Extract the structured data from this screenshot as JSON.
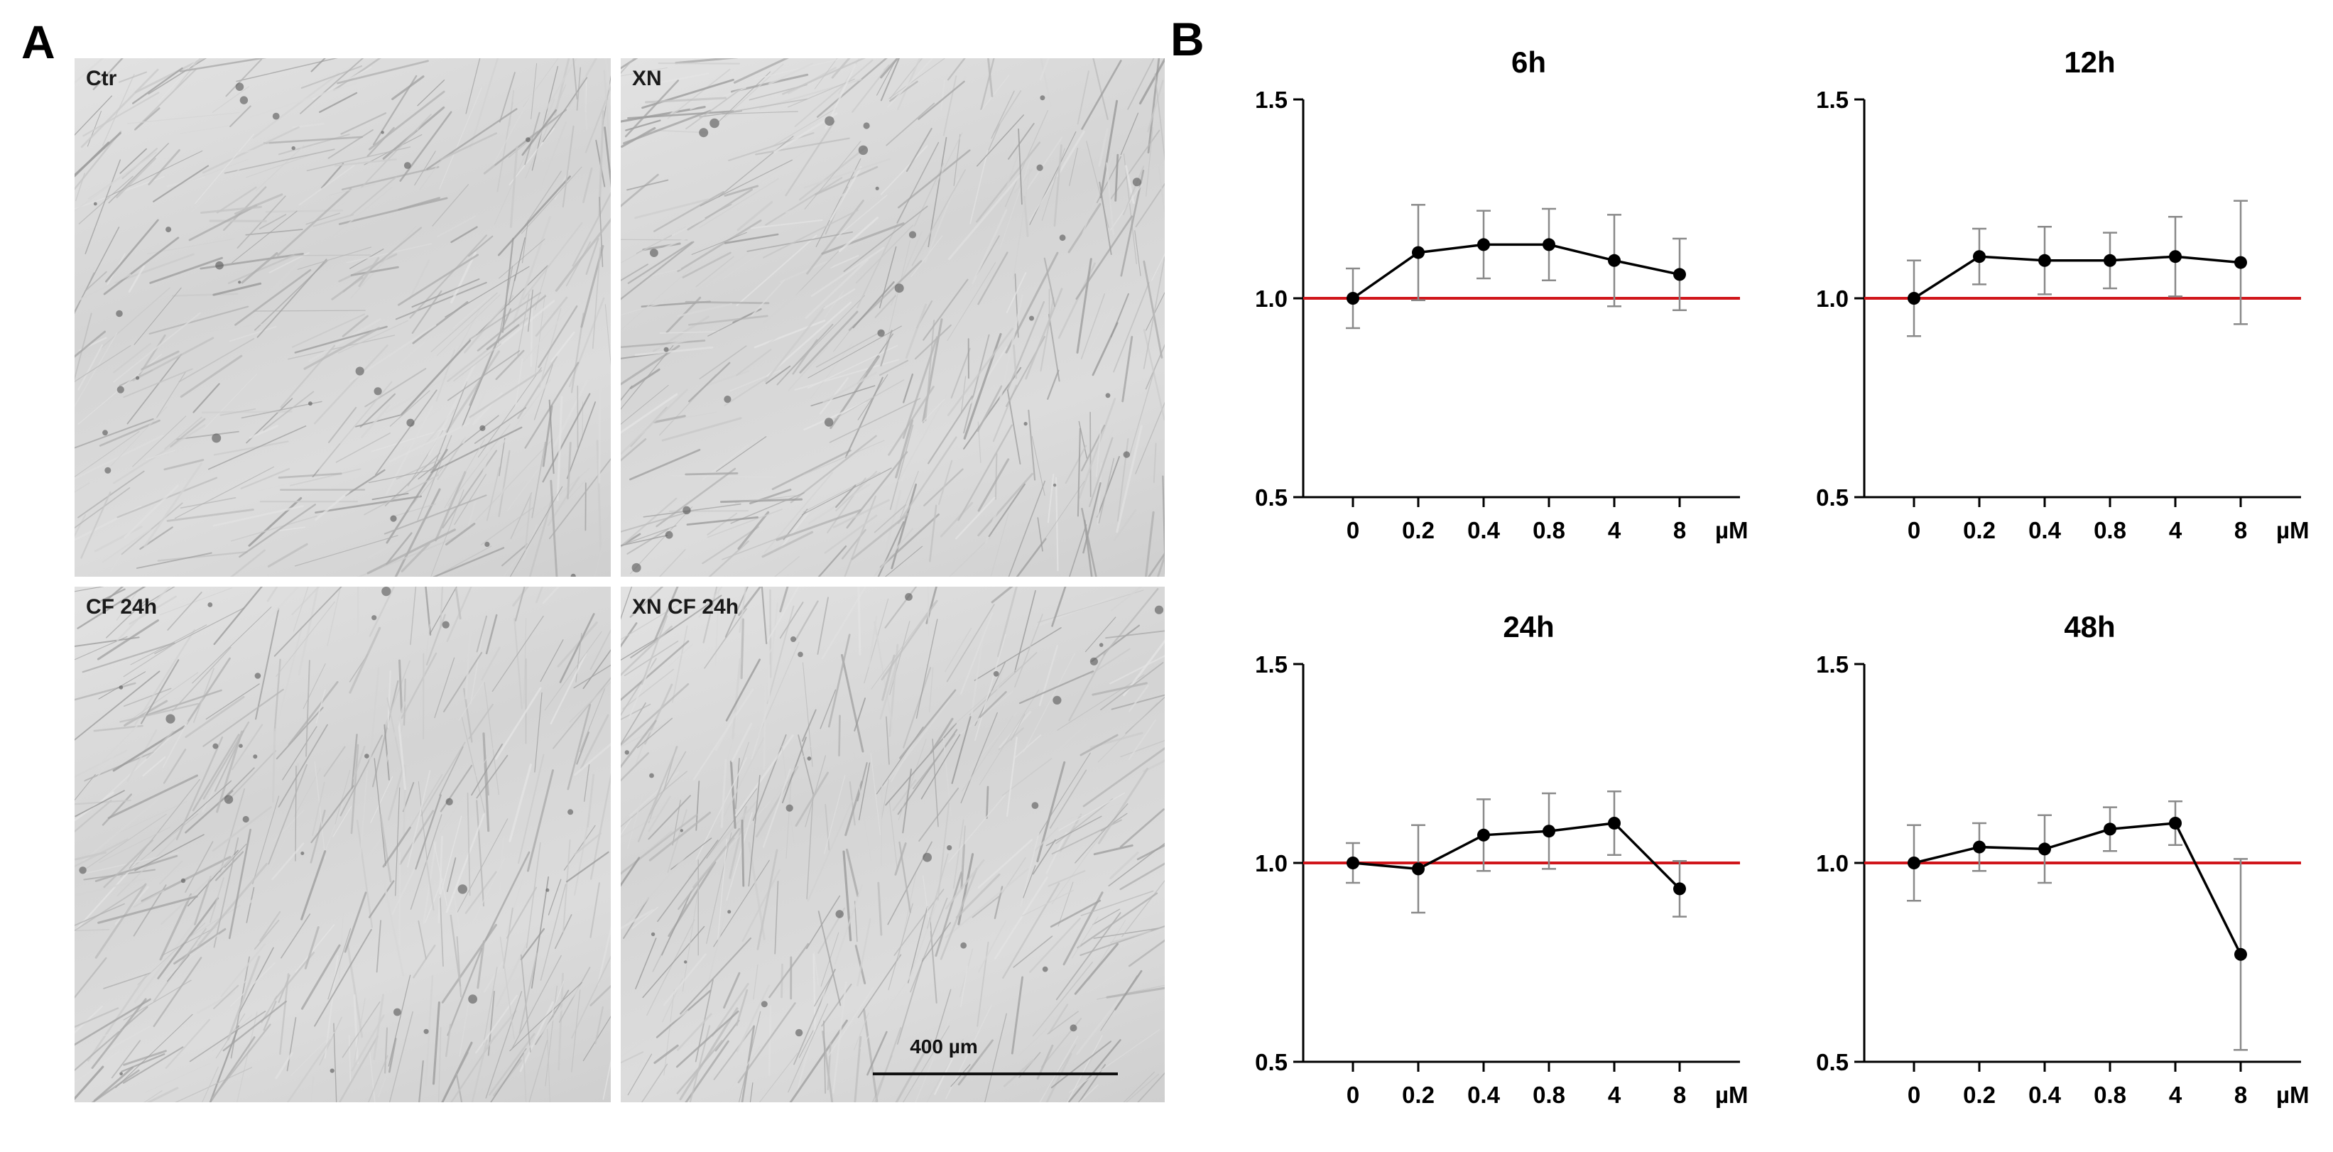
{
  "figure": {
    "panel_a_letter": "A",
    "panel_b_letter": "B"
  },
  "micrographs": [
    {
      "label": "Ctr"
    },
    {
      "label": "XN"
    },
    {
      "label": "CF 24h"
    },
    {
      "label": "XN CF 24h"
    }
  ],
  "scale_bar": {
    "label": "400 µm"
  },
  "colors": {
    "reference_line": "#d0161b",
    "series": "#000000",
    "error_bar": "#8a8a8a",
    "axis": "#000000"
  },
  "chart_data": [
    {
      "type": "line",
      "title": "6h",
      "categories": [
        "0",
        "0.2",
        "0.4",
        "0.8",
        "4",
        "8"
      ],
      "x_unit": "µM",
      "values": [
        1.0,
        1.115,
        1.135,
        1.135,
        1.095,
        1.06
      ],
      "error": [
        0.075,
        0.12,
        0.085,
        0.09,
        0.115,
        0.09
      ],
      "reference_y": 1.0,
      "ylim": [
        0.5,
        1.5
      ],
      "yticks": [
        "0.5",
        "1.0",
        "1.5"
      ]
    },
    {
      "type": "line",
      "title": "12h",
      "categories": [
        "0",
        "0.2",
        "0.4",
        "0.8",
        "4",
        "8"
      ],
      "x_unit": "µM",
      "values": [
        1.0,
        1.105,
        1.095,
        1.095,
        1.105,
        1.09
      ],
      "error": [
        0.095,
        0.07,
        0.085,
        0.07,
        0.1,
        0.155
      ],
      "reference_y": 1.0,
      "ylim": [
        0.5,
        1.5
      ],
      "yticks": [
        "0.5",
        "1.0",
        "1.5"
      ]
    },
    {
      "type": "line",
      "title": "24h",
      "categories": [
        "0",
        "0.2",
        "0.4",
        "0.8",
        "4",
        "8"
      ],
      "x_unit": "µM",
      "values": [
        1.0,
        0.985,
        1.07,
        1.08,
        1.1,
        0.935
      ],
      "error": [
        0.05,
        0.11,
        0.09,
        0.095,
        0.08,
        0.07
      ],
      "reference_y": 1.0,
      "ylim": [
        0.5,
        1.5
      ],
      "yticks": [
        "0.5",
        "1.0",
        "1.5"
      ]
    },
    {
      "type": "line",
      "title": "48h",
      "categories": [
        "0",
        "0.2",
        "0.4",
        "0.8",
        "4",
        "8"
      ],
      "x_unit": "µM",
      "values": [
        1.0,
        1.04,
        1.035,
        1.085,
        1.1,
        0.77
      ],
      "error": [
        0.095,
        0.06,
        0.085,
        0.055,
        0.055,
        0.24
      ],
      "reference_y": 1.0,
      "ylim": [
        0.5,
        1.5
      ],
      "yticks": [
        "0.5",
        "1.0",
        "1.5"
      ]
    }
  ]
}
